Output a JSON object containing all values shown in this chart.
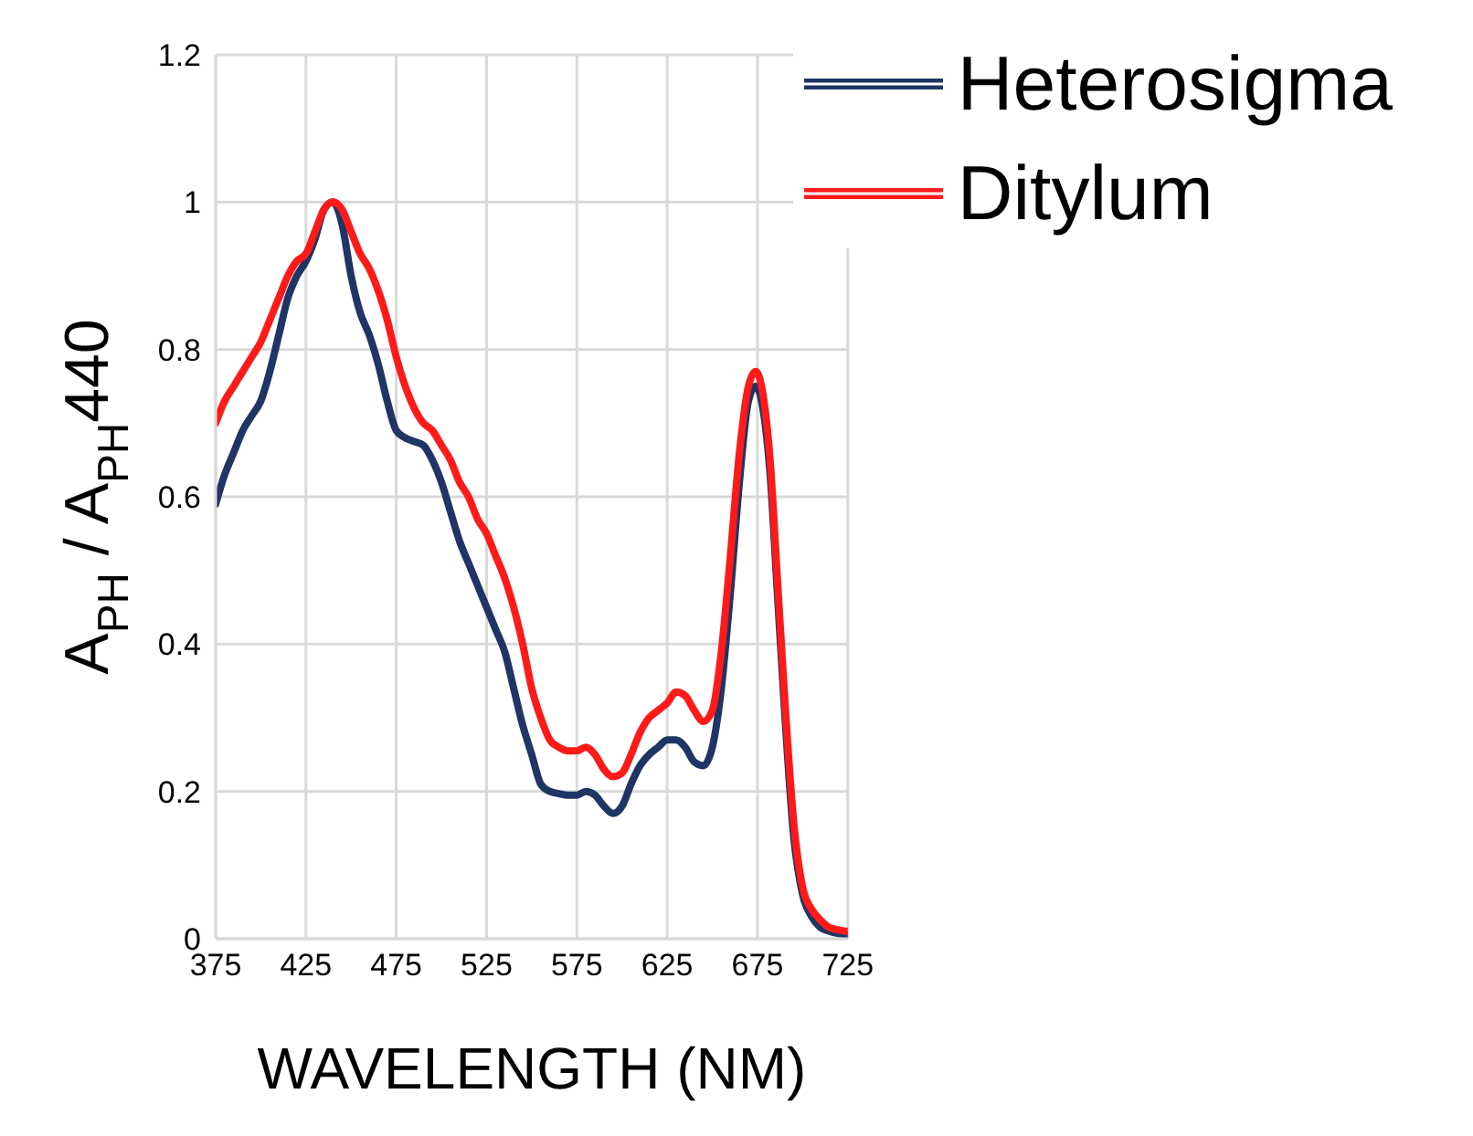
{
  "chart_data": {
    "type": "line",
    "xlabel": "WAVELENGTH (NM)",
    "ylabel": "A$_{PH}$ / A$_{PH}$440",
    "x": [
      375,
      380,
      385,
      390,
      395,
      400,
      405,
      410,
      415,
      420,
      425,
      430,
      435,
      440,
      445,
      450,
      455,
      460,
      465,
      470,
      475,
      480,
      485,
      490,
      495,
      500,
      505,
      510,
      515,
      520,
      525,
      530,
      535,
      540,
      545,
      550,
      555,
      560,
      565,
      570,
      575,
      580,
      585,
      590,
      595,
      600,
      605,
      610,
      615,
      620,
      625,
      630,
      635,
      640,
      645,
      650,
      655,
      660,
      665,
      670,
      674,
      678,
      682,
      686,
      690,
      695,
      700,
      705,
      710,
      715,
      720,
      725
    ],
    "series": [
      {
        "name": "Heterosigma",
        "color": "#1f3564",
        "values": [
          0.59,
          0.63,
          0.66,
          0.69,
          0.71,
          0.73,
          0.77,
          0.82,
          0.87,
          0.9,
          0.92,
          0.95,
          0.99,
          1.0,
          0.97,
          0.9,
          0.85,
          0.82,
          0.78,
          0.73,
          0.69,
          0.68,
          0.675,
          0.67,
          0.65,
          0.62,
          0.58,
          0.54,
          0.51,
          0.48,
          0.45,
          0.42,
          0.39,
          0.34,
          0.29,
          0.25,
          0.21,
          0.2,
          0.197,
          0.195,
          0.195,
          0.2,
          0.195,
          0.18,
          0.17,
          0.18,
          0.21,
          0.235,
          0.25,
          0.26,
          0.27,
          0.27,
          0.26,
          0.24,
          0.235,
          0.26,
          0.34,
          0.47,
          0.62,
          0.73,
          0.75,
          0.72,
          0.63,
          0.47,
          0.31,
          0.14,
          0.06,
          0.03,
          0.015,
          0.01,
          0.007,
          0.005
        ]
      },
      {
        "name": "Ditylum",
        "color": "#ff1a1a",
        "values": [
          0.7,
          0.73,
          0.75,
          0.77,
          0.79,
          0.81,
          0.84,
          0.87,
          0.9,
          0.92,
          0.93,
          0.96,
          0.99,
          1.0,
          0.99,
          0.96,
          0.93,
          0.91,
          0.88,
          0.84,
          0.79,
          0.75,
          0.72,
          0.7,
          0.69,
          0.67,
          0.65,
          0.62,
          0.6,
          0.57,
          0.55,
          0.52,
          0.49,
          0.45,
          0.4,
          0.34,
          0.3,
          0.27,
          0.26,
          0.255,
          0.255,
          0.26,
          0.25,
          0.23,
          0.22,
          0.225,
          0.25,
          0.28,
          0.3,
          0.31,
          0.32,
          0.335,
          0.33,
          0.31,
          0.295,
          0.31,
          0.39,
          0.52,
          0.66,
          0.75,
          0.77,
          0.74,
          0.65,
          0.49,
          0.33,
          0.16,
          0.07,
          0.04,
          0.025,
          0.015,
          0.012,
          0.01
        ]
      }
    ],
    "xlim": [
      375,
      725
    ],
    "xticks": [
      375,
      425,
      475,
      525,
      575,
      625,
      675,
      725
    ],
    "ylim": [
      0,
      1.2
    ],
    "yticks": [
      {
        "value": 0,
        "label": "0"
      },
      {
        "value": 0.2,
        "label": "0.2"
      },
      {
        "value": 0.4,
        "label": "0.4"
      },
      {
        "value": 0.6,
        "label": "0.6"
      },
      {
        "value": 0.8,
        "label": "0.8"
      },
      {
        "value": 1,
        "label": "1"
      },
      {
        "value": 1.2,
        "label": "1.2"
      }
    ],
    "grid": true,
    "legend": "top right",
    "marker": "none",
    "line_style": "solid"
  }
}
